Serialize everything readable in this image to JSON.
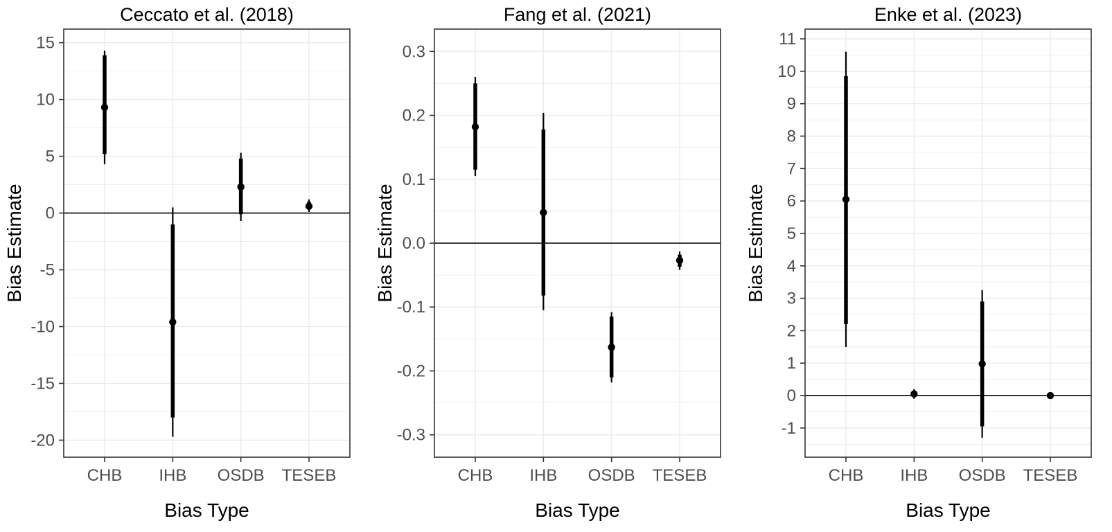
{
  "figure": {
    "background": "#ffffff",
    "grid_color": "#ebebeb",
    "border_color": "#333333",
    "axis_text_color": "#4d4d4d",
    "title_color": "#000000",
    "point_color": "#000000"
  },
  "chart_data": [
    {
      "type": "scatter",
      "title": "Ceccato et al. (2018)",
      "xlabel": "Bias Type",
      "ylabel": "Bias Estimate",
      "categories": [
        "CHB",
        "IHB",
        "OSDB",
        "TESEB"
      ],
      "ylim": [
        -21.5,
        16.2
      ],
      "yticks": [
        -20,
        -15,
        -10,
        -5,
        0,
        5,
        10,
        15
      ],
      "ytick_labels": [
        "-20",
        "-15",
        "-10",
        "-5",
        "0",
        "5",
        "10",
        "15"
      ],
      "hline": 0,
      "grid": true,
      "legend": false,
      "points": [
        {
          "category": "CHB",
          "estimate": 9.3,
          "ci_inner": [
            5.2,
            13.9
          ],
          "ci_outer": [
            4.3,
            14.3
          ]
        },
        {
          "category": "IHB",
          "estimate": -9.6,
          "ci_inner": [
            -18.0,
            -1.0
          ],
          "ci_outer": [
            -19.7,
            0.5
          ]
        },
        {
          "category": "OSDB",
          "estimate": 2.3,
          "ci_inner": [
            -0.1,
            4.8
          ],
          "ci_outer": [
            -0.7,
            5.3
          ]
        },
        {
          "category": "TESEB",
          "estimate": 0.6,
          "ci_inner": [
            0.3,
            1.0
          ],
          "ci_outer": [
            0.1,
            1.2
          ]
        }
      ]
    },
    {
      "type": "scatter",
      "title": "Fang et al. (2021)",
      "xlabel": "Bias Type",
      "ylabel": "Bias Estimate",
      "categories": [
        "CHB",
        "IHB",
        "OSDB",
        "TESEB"
      ],
      "ylim": [
        -0.335,
        0.335
      ],
      "yticks": [
        -0.3,
        -0.2,
        -0.1,
        0,
        0.1,
        0.2,
        0.3
      ],
      "ytick_labels": [
        "-0.3",
        "-0.2",
        "-0.1",
        "0.0",
        "0.1",
        "0.2",
        "0.3"
      ],
      "hline": 0,
      "grid": true,
      "legend": false,
      "points": [
        {
          "category": "CHB",
          "estimate": 0.182,
          "ci_inner": [
            0.115,
            0.25
          ],
          "ci_outer": [
            0.105,
            0.26
          ]
        },
        {
          "category": "IHB",
          "estimate": 0.048,
          "ci_inner": [
            -0.082,
            0.178
          ],
          "ci_outer": [
            -0.105,
            0.204
          ]
        },
        {
          "category": "OSDB",
          "estimate": -0.163,
          "ci_inner": [
            -0.21,
            -0.115
          ],
          "ci_outer": [
            -0.218,
            -0.108
          ]
        },
        {
          "category": "TESEB",
          "estimate": -0.027,
          "ci_inner": [
            -0.037,
            -0.018
          ],
          "ci_outer": [
            -0.042,
            -0.013
          ]
        }
      ]
    },
    {
      "type": "scatter",
      "title": "Enke et al. (2023)",
      "xlabel": "Bias Type",
      "ylabel": "Bias Estimate",
      "categories": [
        "CHB",
        "IHB",
        "OSDB",
        "TESEB"
      ],
      "ylim": [
        -1.9,
        11.3
      ],
      "yticks": [
        -1,
        0,
        1,
        2,
        3,
        4,
        5,
        6,
        7,
        8,
        9,
        10,
        11
      ],
      "ytick_labels": [
        "-1",
        "0",
        "1",
        "2",
        "3",
        "4",
        "5",
        "6",
        "7",
        "8",
        "9",
        "10",
        "11"
      ],
      "hline": 0,
      "grid": true,
      "legend": false,
      "points": [
        {
          "category": "CHB",
          "estimate": 6.05,
          "ci_inner": [
            2.2,
            9.85
          ],
          "ci_outer": [
            1.5,
            10.6
          ]
        },
        {
          "category": "IHB",
          "estimate": 0.05,
          "ci_inner": [
            -0.05,
            0.15
          ],
          "ci_outer": [
            -0.1,
            0.2
          ]
        },
        {
          "category": "OSDB",
          "estimate": 0.98,
          "ci_inner": [
            -0.95,
            2.9
          ],
          "ci_outer": [
            -1.3,
            3.25
          ]
        },
        {
          "category": "TESEB",
          "estimate": 0.0,
          "ci_inner": [
            -0.05,
            0.05
          ],
          "ci_outer": [
            -0.08,
            0.08
          ]
        }
      ]
    }
  ]
}
